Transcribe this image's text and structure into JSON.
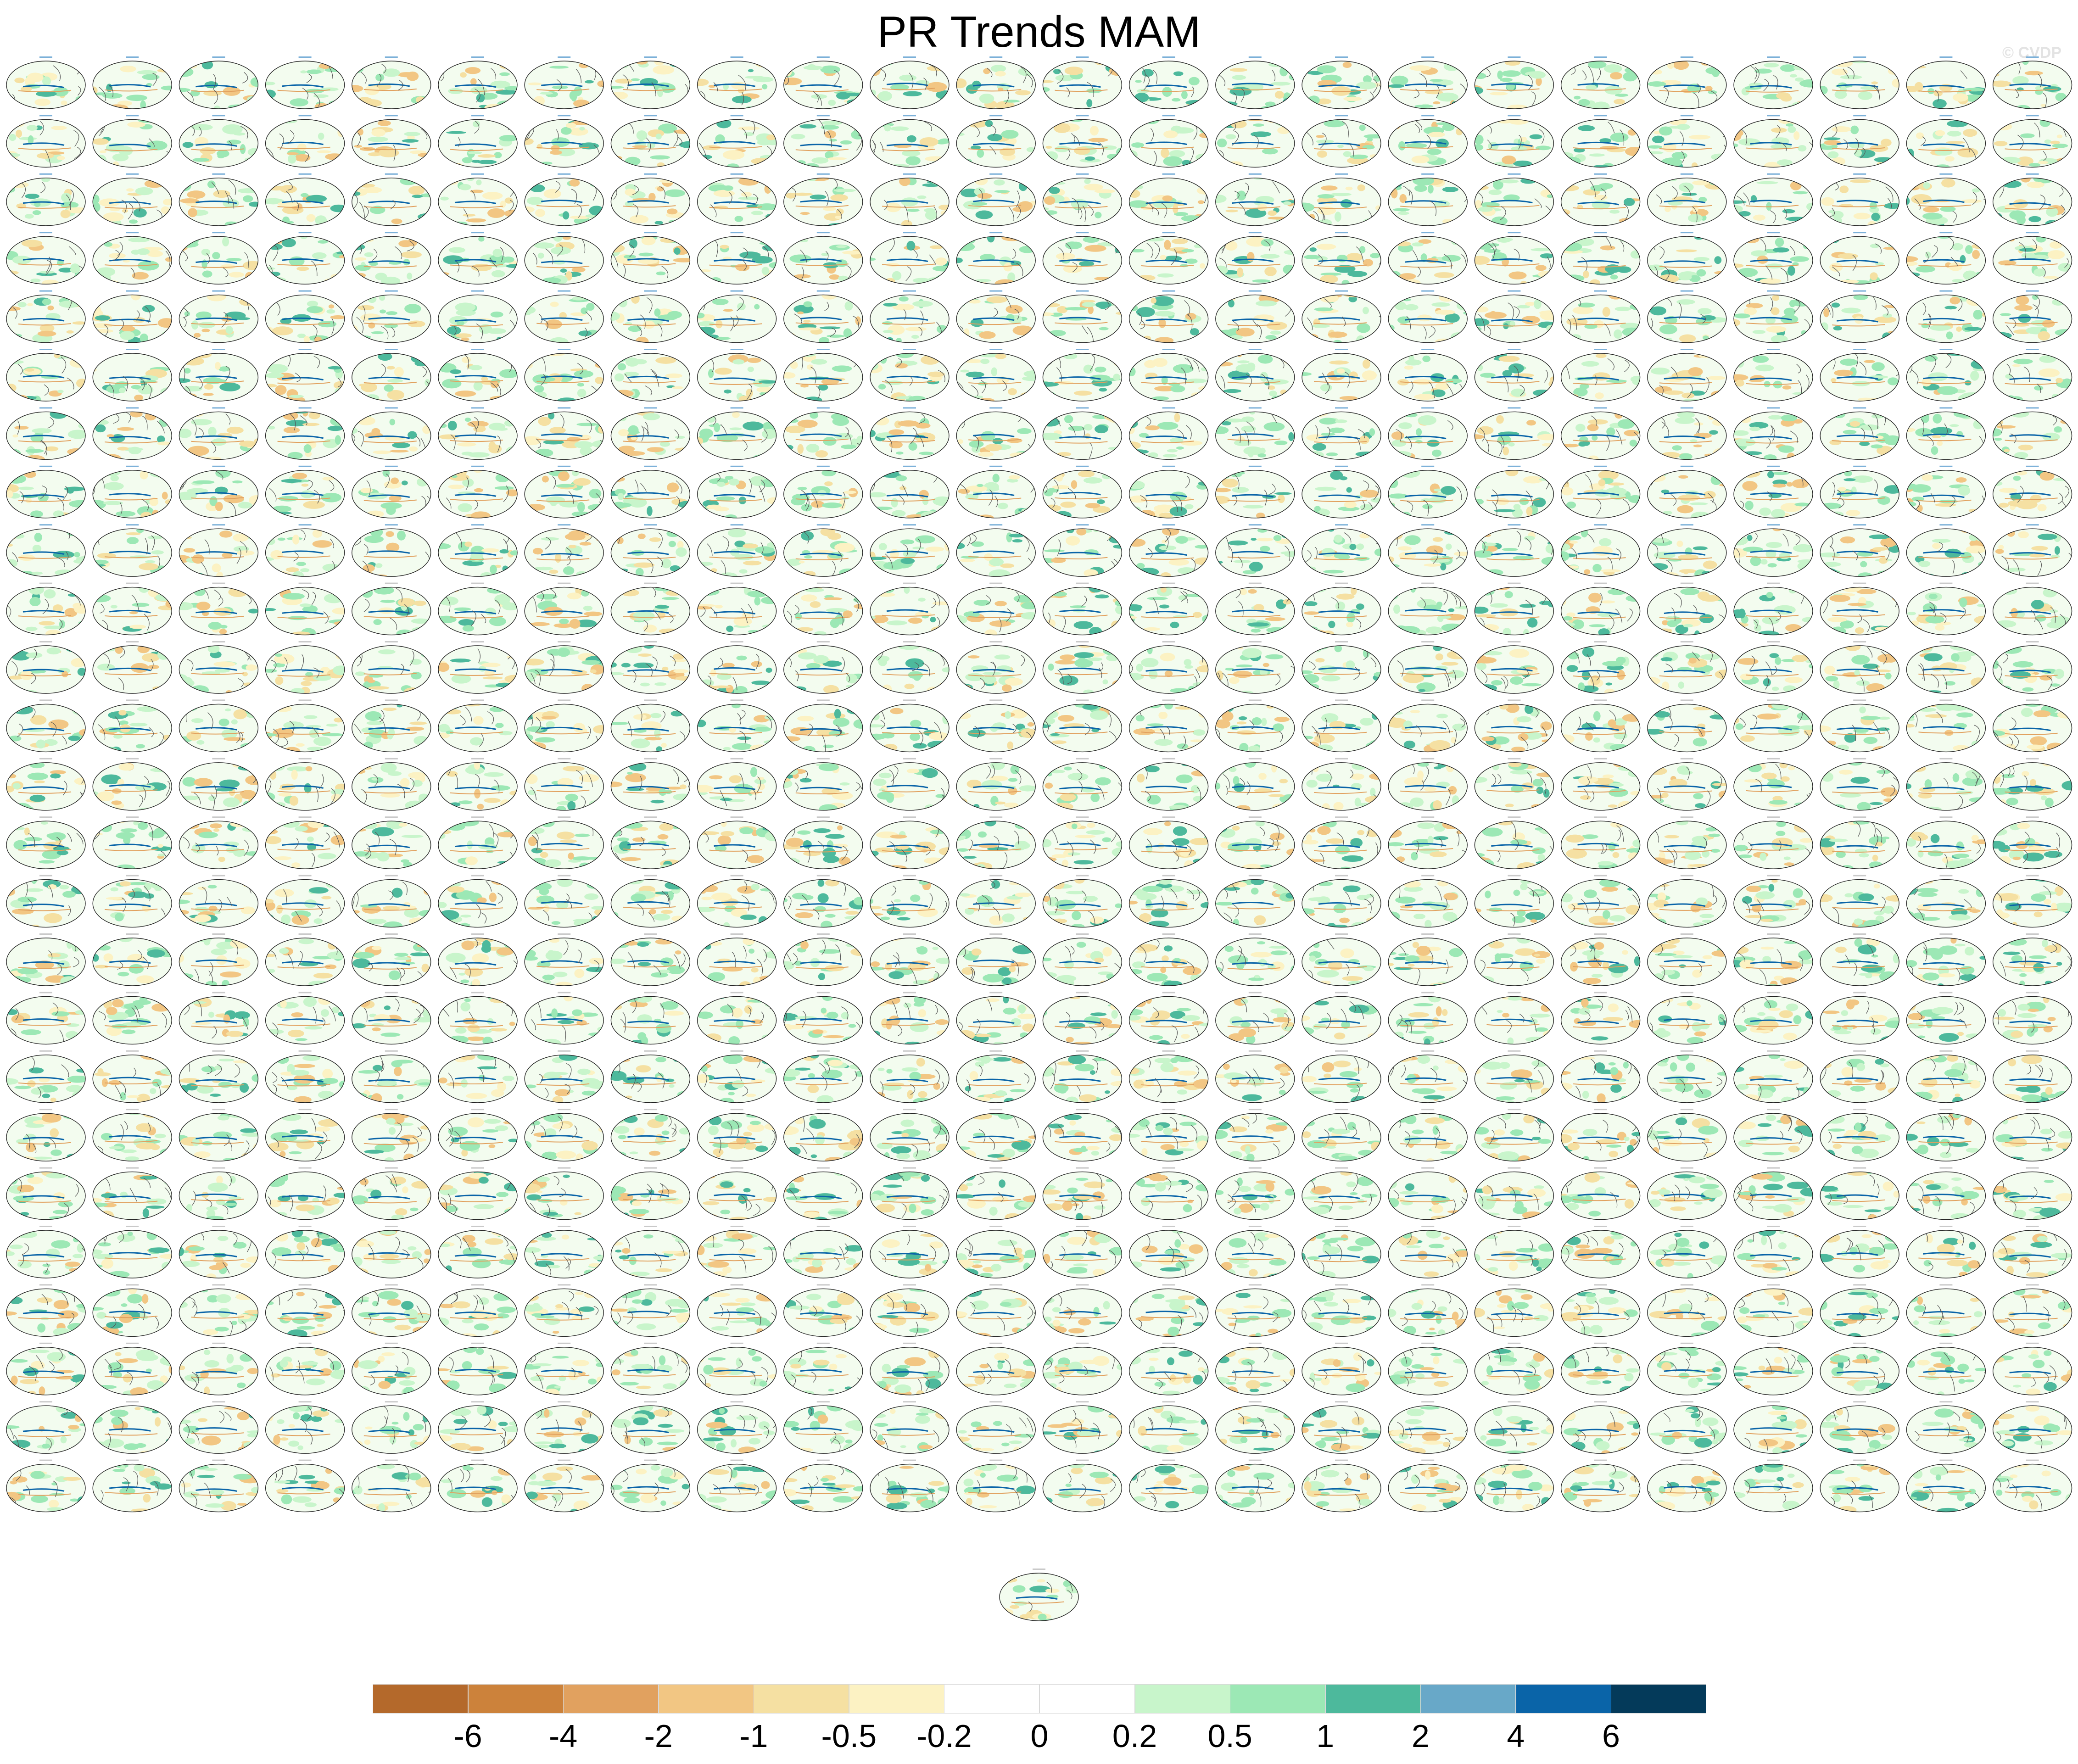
{
  "figure": {
    "title": "PR Trends MAM",
    "watermark": "© CVDP"
  },
  "chart_data": {
    "type": "heatmap",
    "title": "PR Trends MAM",
    "description_of_layout": "grid of global map panels",
    "panel_grid": {
      "columns": 24,
      "rows": 25,
      "extra_panels_below": 1,
      "total_panels": 601
    },
    "colorbar": {
      "levels": [
        "-6",
        "-4",
        "-2",
        "-1",
        "-0.5",
        "-0.2",
        "0",
        "0.2",
        "0.5",
        "1",
        "2",
        "4",
        "6"
      ],
      "colors": [
        "#b4692b",
        "#cc823b",
        "#e1a15f",
        "#f2c683",
        "#f5e0a2",
        "#fcf2c3",
        "#ffffff",
        "#ffffff",
        "#c8f5cb",
        "#9ce8b5",
        "#4db99c",
        "#68a8c8",
        "#0a64a8",
        "#043a5a"
      ]
    }
  }
}
